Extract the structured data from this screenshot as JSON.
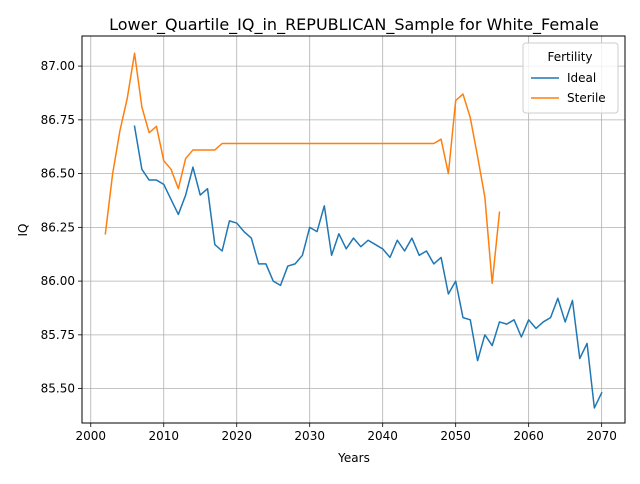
{
  "chart_data": {
    "type": "line",
    "title": "Lower_Quartile_IQ_in_REPUBLICAN_Sample for White_Female",
    "xlabel": "Years",
    "ylabel": "IQ",
    "xlim": [
      1998.8,
      2073.2
    ],
    "ylim": [
      85.34,
      87.14
    ],
    "x_ticks": [
      2000,
      2010,
      2020,
      2030,
      2040,
      2050,
      2060,
      2070
    ],
    "y_ticks": [
      85.5,
      85.75,
      86.0,
      86.25,
      86.5,
      86.75,
      87.0
    ],
    "y_tick_labels": [
      "85.50",
      "85.75",
      "86.00",
      "86.25",
      "86.50",
      "86.75",
      "87.00"
    ],
    "grid": true,
    "legend": {
      "title": "Fertility",
      "position": "top-right"
    },
    "series": [
      {
        "name": "Ideal",
        "color": "#1f77b4",
        "x": [
          2006,
          2007,
          2008,
          2009,
          2010,
          2011,
          2012,
          2013,
          2014,
          2015,
          2016,
          2017,
          2018,
          2019,
          2020,
          2021,
          2022,
          2023,
          2024,
          2025,
          2026,
          2027,
          2028,
          2029,
          2030,
          2031,
          2032,
          2033,
          2034,
          2035,
          2036,
          2037,
          2038,
          2039,
          2040,
          2041,
          2042,
          2043,
          2044,
          2045,
          2046,
          2047,
          2048,
          2049,
          2050,
          2051,
          2052,
          2053,
          2054,
          2055,
          2056,
          2057,
          2058,
          2059,
          2060,
          2061,
          2062,
          2063,
          2064,
          2065,
          2066,
          2067,
          2068,
          2069,
          2070
        ],
        "y": [
          86.72,
          86.52,
          86.47,
          86.47,
          86.45,
          86.38,
          86.31,
          86.4,
          86.53,
          86.4,
          86.43,
          86.17,
          86.14,
          86.28,
          86.27,
          86.23,
          86.2,
          86.08,
          86.08,
          86.0,
          85.98,
          86.07,
          86.08,
          86.12,
          86.25,
          86.23,
          86.35,
          86.12,
          86.22,
          86.15,
          86.2,
          86.16,
          86.19,
          86.17,
          86.15,
          86.11,
          86.19,
          86.14,
          86.2,
          86.12,
          86.14,
          86.08,
          86.11,
          85.94,
          86.0,
          85.83,
          85.82,
          85.63,
          85.75,
          85.7,
          85.81,
          85.8,
          85.82,
          85.74,
          85.82,
          85.78,
          85.81,
          85.83,
          85.92,
          85.81,
          85.91,
          85.64,
          85.71,
          85.41,
          85.48
        ]
      },
      {
        "name": "Sterile",
        "color": "#ff7f0e",
        "x": [
          2002,
          2003,
          2004,
          2005,
          2006,
          2007,
          2008,
          2009,
          2010,
          2011,
          2012,
          2013,
          2014,
          2015,
          2016,
          2017,
          2018,
          2019,
          2020,
          2021,
          2022,
          2023,
          2024,
          2025,
          2026,
          2027,
          2028,
          2029,
          2030,
          2031,
          2032,
          2033,
          2034,
          2035,
          2036,
          2037,
          2038,
          2039,
          2040,
          2041,
          2042,
          2043,
          2044,
          2045,
          2046,
          2047,
          2048,
          2049,
          2050,
          2051,
          2052,
          2053,
          2054,
          2055,
          2056
        ],
        "y": [
          86.22,
          86.5,
          86.7,
          86.85,
          87.06,
          86.81,
          86.69,
          86.72,
          86.56,
          86.52,
          86.43,
          86.57,
          86.61,
          86.61,
          86.61,
          86.61,
          86.64,
          86.64,
          86.64,
          86.64,
          86.64,
          86.64,
          86.64,
          86.64,
          86.64,
          86.64,
          86.64,
          86.64,
          86.64,
          86.64,
          86.64,
          86.64,
          86.64,
          86.64,
          86.64,
          86.64,
          86.64,
          86.64,
          86.64,
          86.64,
          86.64,
          86.64,
          86.64,
          86.64,
          86.64,
          86.64,
          86.66,
          86.5,
          86.84,
          86.87,
          86.76,
          86.58,
          86.39,
          85.99,
          86.32
        ]
      }
    ]
  }
}
